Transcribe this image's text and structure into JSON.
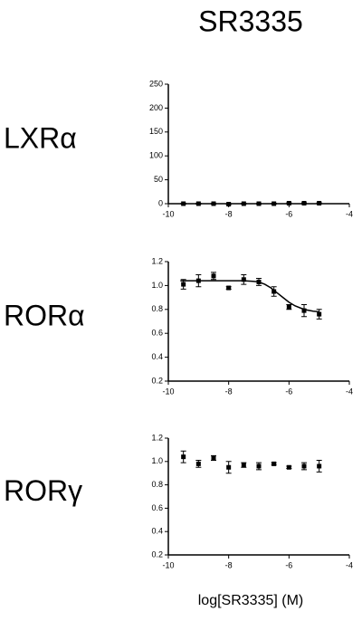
{
  "title": "SR3335",
  "xlabel": "log[SR3335] (M)",
  "chart_data": [
    {
      "type": "scatter",
      "label": "LXRα",
      "x": [
        -9.5,
        -9,
        -8.5,
        -8,
        -7.5,
        -7,
        -6.5,
        -6,
        -5.5,
        -5
      ],
      "values": [
        0,
        0,
        0,
        -1,
        0,
        0,
        0,
        1,
        1,
        1
      ],
      "errors": [
        1,
        1,
        1,
        1,
        1,
        1,
        1,
        1,
        1,
        1
      ],
      "xlim": [
        -10,
        -4
      ],
      "xticks": [
        -10,
        -8,
        -6,
        -4
      ],
      "ylim": [
        0,
        250
      ],
      "yticks": [
        0,
        50,
        100,
        150,
        200,
        250
      ],
      "color": "#000000"
    },
    {
      "type": "scatter",
      "label": "RORα",
      "x": [
        -9.5,
        -9,
        -8.5,
        -8,
        -7.5,
        -7,
        -6.5,
        -6,
        -5.5,
        -5
      ],
      "values": [
        1.01,
        1.04,
        1.08,
        0.98,
        1.05,
        1.03,
        0.95,
        0.82,
        0.79,
        0.76
      ],
      "errors": [
        0.04,
        0.05,
        0.03,
        0.01,
        0.04,
        0.03,
        0.04,
        0.02,
        0.05,
        0.04
      ],
      "fit": {
        "x": [
          -9.6,
          -9,
          -8.5,
          -8,
          -7.5,
          -7.2,
          -7,
          -6.8,
          -6.6,
          -6.4,
          -6.2,
          -6,
          -5.8,
          -5.6,
          -5.4,
          -5.2,
          -5
        ],
        "values": [
          1.04,
          1.04,
          1.04,
          1.04,
          1.04,
          1.035,
          1.03,
          1.01,
          0.98,
          0.94,
          0.9,
          0.86,
          0.83,
          0.81,
          0.795,
          0.785,
          0.78
        ]
      },
      "xlim": [
        -10,
        -4
      ],
      "xticks": [
        -10,
        -8,
        -6,
        -4
      ],
      "ylim": [
        0.2,
        1.2
      ],
      "yticks": [
        0.2,
        0.4,
        0.6,
        0.8,
        {
          "value": 1,
          "label": "1.0"
        },
        1.2
      ],
      "color": "#000000"
    },
    {
      "type": "scatter",
      "label": "RORγ",
      "x": [
        -9.5,
        -9,
        -8.5,
        -8,
        -7.5,
        -7,
        -6.5,
        -6,
        -5.5,
        -5
      ],
      "values": [
        1.04,
        0.98,
        1.03,
        0.95,
        0.97,
        0.96,
        0.98,
        0.95,
        0.96,
        0.96
      ],
      "errors": [
        0.05,
        0.03,
        0.02,
        0.05,
        0.02,
        0.03,
        0.01,
        0.01,
        0.03,
        0.05
      ],
      "xlim": [
        -10,
        -4
      ],
      "xticks": [
        -10,
        -8,
        -6,
        -4
      ],
      "ylim": [
        0.2,
        1.2
      ],
      "yticks": [
        0.2,
        0.4,
        0.6,
        0.8,
        {
          "value": 1,
          "label": "1.0"
        },
        1.2
      ],
      "color": "#000000"
    }
  ]
}
